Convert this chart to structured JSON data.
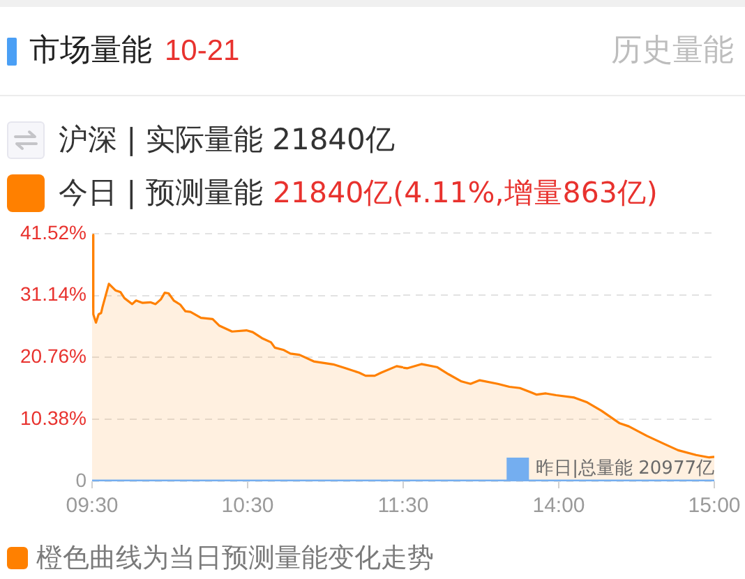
{
  "chart_data": [
    {
      "type": "area",
      "title": "市场量能",
      "subtitle": "10-21",
      "annotations": [
        "历史量能",
        "沪深 | 实际量能 21840亿",
        "21840亿(4.11%,增量863亿)",
        "橙色曲线为当日预测量能变化走势"
      ],
      "x": [
        9.5,
        9.508,
        9.525,
        9.542,
        9.558,
        9.567,
        9.608,
        9.65,
        9.683,
        9.708,
        9.758,
        9.783,
        9.825,
        9.875,
        9.908,
        9.942,
        9.967,
        9.992,
        10.025,
        10.067,
        10.1,
        10.133,
        10.2,
        10.275,
        10.317,
        10.4,
        10.492,
        10.533,
        10.592,
        10.65,
        10.675,
        10.733,
        10.775,
        10.833,
        10.925,
        11.05,
        11.125,
        11.217,
        11.258,
        11.317,
        11.358,
        11.458,
        11.5
      ],
      "xlim": [
        9.5,
        11.5
      ],
      "xticks": [
        {
          "value": 9.5,
          "label": "09:30"
        },
        {
          "value": 10.5,
          "label": "10:30"
        },
        {
          "value": 11.5,
          "label": "11:30"
        }
      ],
      "ylim": [
        0,
        41.52
      ],
      "yticks": [
        0,
        {
          "value": 10.38,
          "label": "10.38%"
        },
        {
          "value": 20.76,
          "label": "20.76%"
        },
        {
          "value": 31.14,
          "label": "31.14%"
        },
        {
          "value": 41.52,
          "label": "41.52%"
        }
      ],
      "grid": "y",
      "legend": "top left",
      "series": [
        {
          "name": "今日 | 预测量能",
          "color": "#ff8000",
          "values": [
            41.3,
            28.0,
            26.6,
            28.0,
            28.2,
            29.2,
            33.1,
            32.0,
            31.7,
            30.7,
            29.7,
            30.3,
            29.9,
            30.0,
            29.7,
            30.5,
            31.6,
            31.5,
            30.3,
            29.6,
            28.5,
            28.4,
            27.4,
            27.2,
            26.1,
            25.1,
            25.3,
            25.0,
            24.0,
            23.3,
            22.4,
            22.0,
            21.4,
            21.2,
            20.1,
            19.6,
            19.0,
            18.2,
            17.7,
            17.7,
            18.2,
            19.3,
            19.1
          ]
        },
        {
          "type": "line",
          "color": "#74aef0",
          "x": [
            9.5,
            11.5
          ],
          "values": [
            0,
            0
          ]
        }
      ]
    },
    {
      "type": "area",
      "x": [
        13.0,
        13.025,
        13.117,
        13.217,
        13.292,
        13.375,
        13.433,
        13.492,
        13.608,
        13.683,
        13.75,
        13.858,
        13.917,
        13.983,
        14.1,
        14.183,
        14.275,
        14.392,
        14.45,
        14.567,
        14.683,
        14.767,
        14.883,
        14.967,
        15
      ],
      "xlim": [
        13,
        15
      ],
      "xticks": [
        {
          "value": 14,
          "label": "14:00"
        },
        {
          "value": 15,
          "label": "15:00"
        }
      ],
      "ylim": [
        0,
        41.52
      ],
      "yticks": [
        0,
        10.38,
        20.76,
        31.14,
        41.52
      ],
      "grid": "y",
      "tick_labels": "x",
      "series": [
        {
          "color": "#ff8000",
          "values": [
            19.0,
            18.9,
            19.6,
            19.1,
            17.9,
            16.7,
            16.3,
            16.9,
            16.3,
            15.8,
            15.6,
            14.5,
            14.7,
            14.4,
            14.0,
            13.2,
            11.8,
            9.7,
            9.2,
            7.6,
            6.2,
            5.2,
            4.4,
            4.0,
            4.1
          ]
        },
        {
          "name": "昨日|总量能 20977亿",
          "type": "line",
          "color": "#74aef0",
          "x": [
            13,
            15
          ],
          "values": [
            0,
            0
          ]
        }
      ]
    }
  ]
}
